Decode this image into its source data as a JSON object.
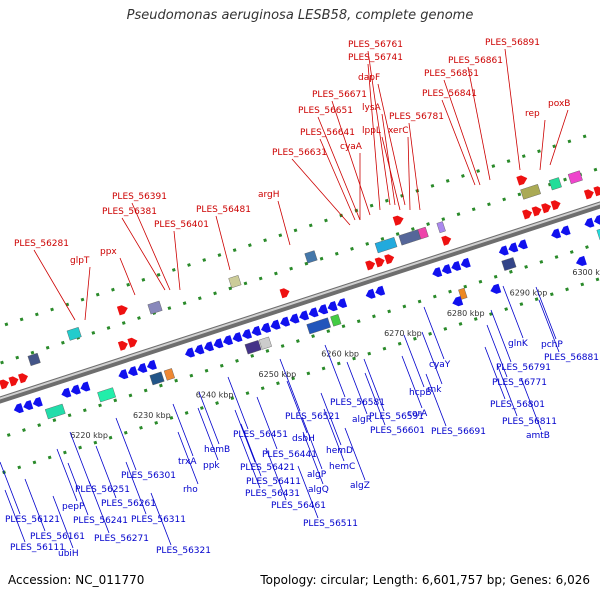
{
  "title": "Pseudomonas aeruginosa LESB58, complete genome",
  "footer": {
    "accession": "Accession: NC_011770",
    "summary": "Topology: circular; Length: 6,601,757 bp; Genes: 6,026"
  },
  "ticks": [
    "6220 kbp",
    "6230 kbp",
    "6240 kbp",
    "6250 kbp",
    "6260 kbp",
    "6270 kbp",
    "6280 kbp",
    "6290 kbp",
    "6300 kbp"
  ],
  "colors": {
    "top_label": "#cc0000",
    "bottom_label": "#0000cc",
    "backbone": "#888888",
    "forward_arrow": "#ee1111",
    "reverse_arrow": "#1111ee"
  },
  "top_labels": [
    "PLES_56891",
    "PLES_56761",
    "PLES_56741",
    "PLES_56861",
    "PLES_56851",
    "dapF",
    "PLES_56671",
    "lysA",
    "PLES_56841",
    "PLES_56651",
    "PLES_56781",
    "poxB",
    "rep",
    "lppL",
    "xerC",
    "PLES_56641",
    "cyaA",
    "PLES_56631",
    "argH",
    "PLES_56391",
    "PLES_56381",
    "PLES_56481",
    "PLES_56401",
    "PLES_56281",
    "ppx",
    "glpT"
  ],
  "bottom_labels": [
    "glnK",
    "pchP",
    "PLES_56881",
    "cyaY",
    "PLES_56791",
    "rnk",
    "PLES_56771",
    "hcpB",
    "PLES_56581",
    "corA",
    "PLES_56801",
    "PLES_56521",
    "PLES_56591",
    "algR",
    "PLES_56811",
    "PLES_56451",
    "dsbH",
    "PLES_56601",
    "PLES_56691",
    "amtB",
    "hemB",
    "trxA",
    "ppk",
    "PLES_56441",
    "hemD",
    "hemC",
    "PLES_56421",
    "algP",
    "PLES_56411",
    "algQ",
    "algZ",
    "PLES_56431",
    "PLES_56301",
    "rho",
    "PLES_56461",
    "PLES_56251",
    "PLES_56261",
    "PLES_56311",
    "PLES_56511",
    "pepP",
    "PLES_56241",
    "PLES_56121",
    "PLES_56161",
    "PLES_56271",
    "PLES_56321",
    "PLES_56111",
    "ubiH"
  ]
}
